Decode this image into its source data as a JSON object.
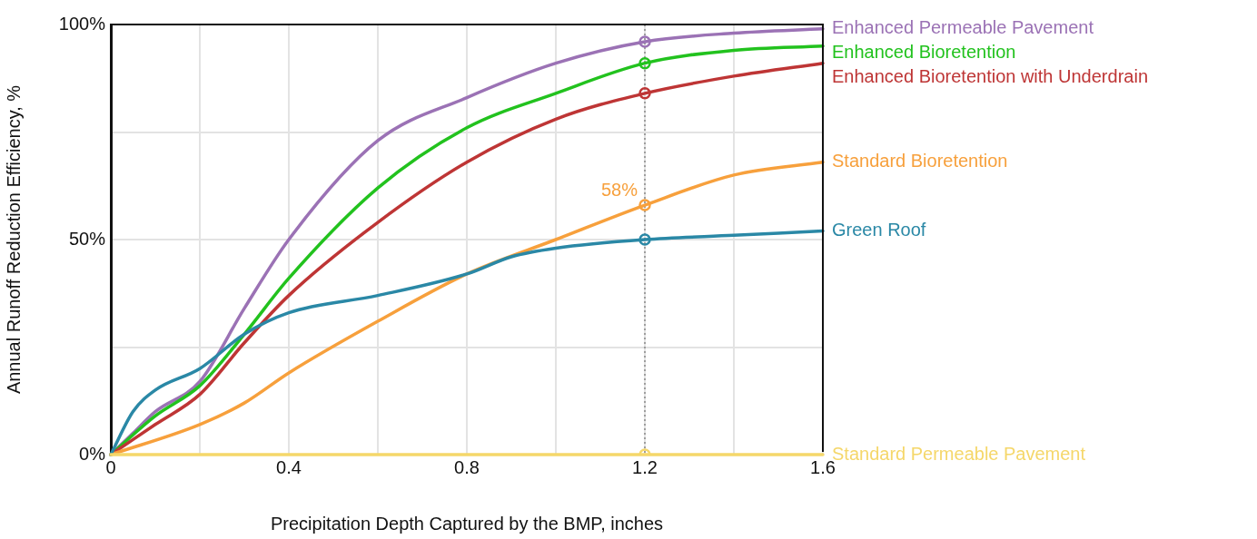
{
  "chart_data": {
    "type": "line",
    "xlabel": "Precipitation Depth Captured by the BMP, inches",
    "ylabel": "Annual Runoff Reduction Efficiency, %",
    "xlim": [
      0,
      1.6
    ],
    "xticks": [
      0,
      {
        "value": 0.2,
        "label": null
      },
      0.4,
      {
        "value": 0.6,
        "label": null
      },
      0.8,
      {
        "value": 1.0,
        "label": null
      },
      1.2,
      {
        "value": 1.4,
        "label": null
      },
      1.6
    ],
    "ylim": [
      0,
      100
    ],
    "yticks": [
      {
        "value": 0,
        "label": "0%"
      },
      {
        "value": 25,
        "label": null
      },
      {
        "value": 50,
        "label": "50%"
      },
      {
        "value": 75,
        "label": null
      },
      {
        "value": 100,
        "label": "100%"
      }
    ],
    "grid": true,
    "legend": false,
    "line_style": "solid",
    "series": [
      {
        "name": "Enhanced Permeable Pavement",
        "color": "#9b72b5",
        "x": [
          0,
          0.05,
          0.1,
          0.2,
          0.3,
          0.4,
          0.6,
          0.8,
          1.0,
          1.2,
          1.4,
          1.6
        ],
        "values": [
          0,
          5,
          10,
          17,
          34,
          50,
          73,
          83,
          91,
          96,
          98,
          99
        ]
      },
      {
        "name": "Enhanced Bioretention",
        "color": "#22c21e",
        "x": [
          0,
          0.1,
          0.2,
          0.3,
          0.4,
          0.6,
          0.8,
          1.0,
          1.2,
          1.4,
          1.6
        ],
        "values": [
          0,
          9,
          16,
          28,
          41,
          62,
          76,
          84,
          91,
          94,
          95
        ]
      },
      {
        "name": "Enhanced Bioretention with Underdrain",
        "color": "#be3535",
        "x": [
          0,
          0.1,
          0.2,
          0.3,
          0.4,
          0.6,
          0.8,
          1.0,
          1.2,
          1.4,
          1.6
        ],
        "values": [
          0,
          7,
          14,
          26,
          37,
          54,
          68,
          78,
          84,
          88,
          91
        ]
      },
      {
        "name": "Standard Bioretention",
        "color": "#f7a03c",
        "x": [
          0,
          0.2,
          0.3,
          0.4,
          0.6,
          0.8,
          1.0,
          1.2,
          1.4,
          1.6
        ],
        "values": [
          0,
          7,
          12,
          19,
          31,
          42,
          50,
          58,
          65,
          68
        ]
      },
      {
        "name": "Green Roof",
        "color": "#2a88a6",
        "x": [
          0,
          0.05,
          0.1,
          0.2,
          0.3,
          0.4,
          0.6,
          0.8,
          0.9,
          1.0,
          1.2,
          1.4,
          1.6
        ],
        "values": [
          0,
          10,
          15,
          20,
          28,
          33,
          37,
          42,
          46,
          48,
          50,
          51,
          52
        ]
      },
      {
        "name": "Standard Permeable Pavement",
        "color": "#f5d76a",
        "x": [
          0,
          0.4,
          0.8,
          1.2,
          1.6
        ],
        "values": [
          0,
          0,
          0,
          0,
          0
        ]
      },
      {
        "type": "scatter",
        "marker": "circle",
        "x": [
          1.2,
          1.2,
          1.2,
          1.2,
          1.2,
          1.2
        ],
        "values": [
          96,
          91,
          84,
          58,
          50,
          0
        ],
        "colors": [
          "#9b72b5",
          "#22c21e",
          "#be3535",
          "#f7a03c",
          "#2a88a6",
          "#f5d76a"
        ]
      }
    ],
    "ref_lines": [
      {
        "axis": "x",
        "value": 1.2,
        "color": "#888888",
        "line_style": "dotted"
      }
    ],
    "annotations": [
      {
        "text": "58%",
        "x": 1.2,
        "y": 58
      }
    ]
  }
}
